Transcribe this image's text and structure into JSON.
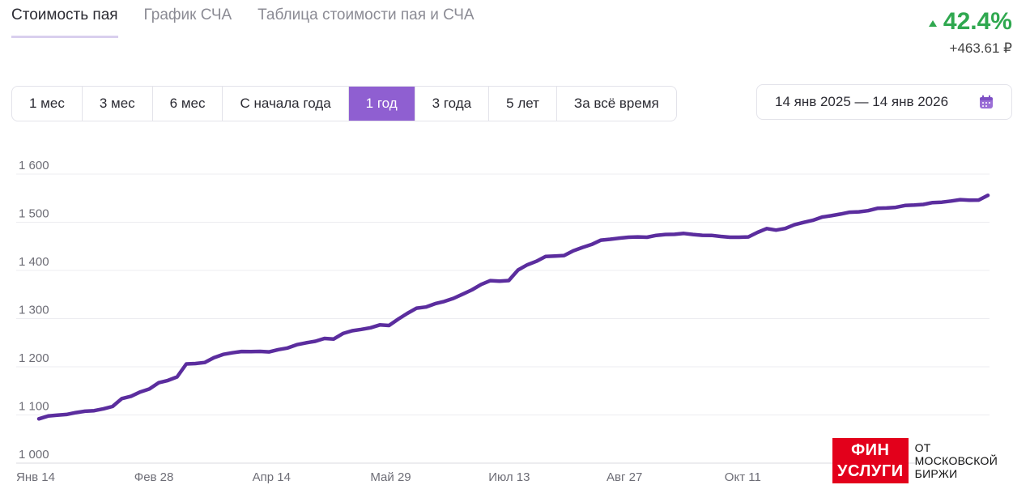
{
  "tabs": [
    {
      "label": "Стоимость пая",
      "active": true
    },
    {
      "label": "График СЧА",
      "active": false
    },
    {
      "label": "Таблица стоимости пая и СЧА",
      "active": false
    }
  ],
  "change": {
    "percent": "42.4%",
    "absolute": "+463.61 ₽",
    "color": "#2fa84f"
  },
  "periods": [
    {
      "label": "1 мес",
      "active": false
    },
    {
      "label": "3 мес",
      "active": false
    },
    {
      "label": "6 мес",
      "active": false
    },
    {
      "label": "С начала года",
      "active": false
    },
    {
      "label": "1 год",
      "active": true
    },
    {
      "label": "3 года",
      "active": false
    },
    {
      "label": "5 лет",
      "active": false
    },
    {
      "label": "За всё время",
      "active": false
    }
  ],
  "date_range": {
    "label": "14 янв 2025 — 14 янв 2026",
    "icon": "calendar-icon"
  },
  "chart_data": {
    "type": "line",
    "line_color": "#5b2d9e",
    "ylim": [
      1000,
      1600
    ],
    "y_ticks": [
      1000,
      1100,
      1200,
      1300,
      1400,
      1500,
      1600
    ],
    "y_tick_labels": [
      "1 000",
      "1 100",
      "1 200",
      "1 300",
      "1 400",
      "1 500",
      "1 600"
    ],
    "x_tick_labels": [
      "Янв 14",
      "Фев 28",
      "Апр 14",
      "Май 29",
      "Июл 13",
      "Авг 27",
      "Окт 11"
    ],
    "x_ticks_dim": [
      false,
      false,
      false,
      false,
      false,
      false,
      true
    ],
    "series": [
      {
        "values": [
          1092,
          1097,
          1100,
          1102,
          1104,
          1108,
          1110,
          1112,
          1118,
          1135,
          1138,
          1148,
          1155,
          1166,
          1172,
          1180,
          1205,
          1207,
          1210,
          1218,
          1226,
          1230,
          1231,
          1232,
          1233,
          1230,
          1236,
          1240,
          1245,
          1250,
          1254,
          1258,
          1258,
          1270,
          1274,
          1278,
          1282,
          1286,
          1286,
          1300,
          1310,
          1322,
          1325,
          1330,
          1336,
          1343,
          1350,
          1360,
          1372,
          1378,
          1378,
          1380,
          1400,
          1412,
          1420,
          1428,
          1430,
          1432,
          1440,
          1448,
          1455,
          1462,
          1465,
          1468,
          1468,
          1470,
          1470,
          1472,
          1475,
          1476,
          1476,
          1475,
          1474,
          1472,
          1471,
          1470,
          1468,
          1470,
          1480,
          1486,
          1484,
          1488,
          1494,
          1500,
          1505,
          1510,
          1514,
          1518,
          1520,
          1522,
          1525,
          1528,
          1530,
          1532,
          1534,
          1536,
          1538,
          1540,
          1542,
          1545,
          1546,
          1546,
          1547,
          1555
        ]
      }
    ]
  },
  "logo": {
    "red_line1": "ФИН",
    "red_line2": "УСЛУГИ",
    "side_line1": "ОТ",
    "side_line2": "МОСКОВСКОЙ",
    "side_line3": "БИРЖИ"
  }
}
